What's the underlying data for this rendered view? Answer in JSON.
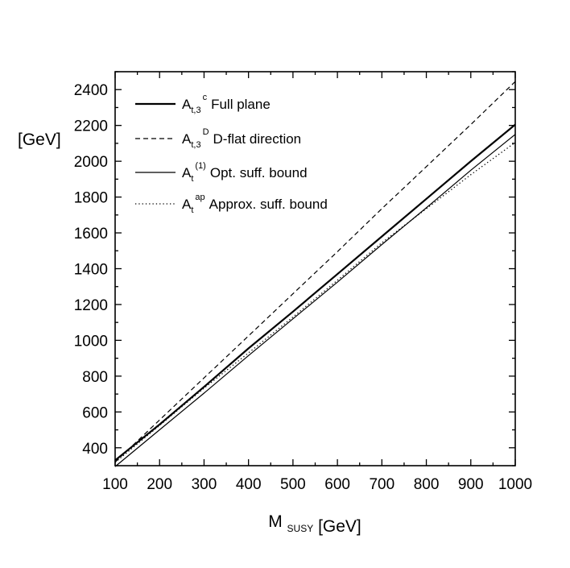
{
  "chart_data": {
    "type": "line",
    "title": "",
    "xlabel": {
      "main": "M",
      "sub": "SUSY",
      "unit": "[GeV]"
    },
    "ylabel": "[GeV]",
    "xlim": [
      100,
      1000
    ],
    "ylim": [
      300,
      2500
    ],
    "xticks": [
      100,
      200,
      300,
      400,
      500,
      600,
      700,
      800,
      900,
      1000
    ],
    "yticks": [
      400,
      600,
      800,
      1000,
      1200,
      1400,
      1600,
      1800,
      2000,
      2200,
      2400
    ],
    "x_minor_step": 50,
    "y_minor_step": 100,
    "legend_position": "top-left",
    "series": [
      {
        "legend": {
          "base": "A",
          "sub": "t,3",
          "sup": "c",
          "text": "Full plane"
        },
        "style": "solid-thick",
        "x": [
          100,
          200,
          300,
          400,
          500,
          600,
          700,
          800,
          900,
          1000
        ],
        "y": [
          330,
          530,
          740,
          955,
          1160,
          1370,
          1580,
          1790,
          2000,
          2205
        ]
      },
      {
        "legend": {
          "base": "A",
          "sub": "t,3",
          "sup": "D",
          "text": "D-flat direction"
        },
        "style": "dashed",
        "x": [
          100,
          200,
          300,
          400,
          500,
          600,
          700,
          800,
          900,
          1000
        ],
        "y": [
          320,
          555,
          790,
          1025,
          1260,
          1495,
          1735,
          1970,
          2205,
          2445
        ]
      },
      {
        "legend": {
          "base": "A",
          "sub": "t",
          "sup": "(1)",
          "text": "Opt. suff. bound"
        },
        "style": "solid-thin",
        "x": [
          100,
          200,
          300,
          400,
          500,
          600,
          700,
          800,
          900,
          1000
        ],
        "y": [
          295,
          500,
          705,
          915,
          1120,
          1325,
          1535,
          1740,
          1950,
          2150
        ]
      },
      {
        "legend": {
          "base": "A",
          "sub": "t",
          "sup": "ap",
          "text": "Approx. suff. bound"
        },
        "style": "dotted",
        "x": [
          100,
          200,
          300,
          400,
          500,
          600,
          700,
          800,
          900,
          1000
        ],
        "y": [
          318,
          525,
          733,
          930,
          1130,
          1335,
          1545,
          1735,
          1925,
          2105
        ]
      }
    ]
  }
}
